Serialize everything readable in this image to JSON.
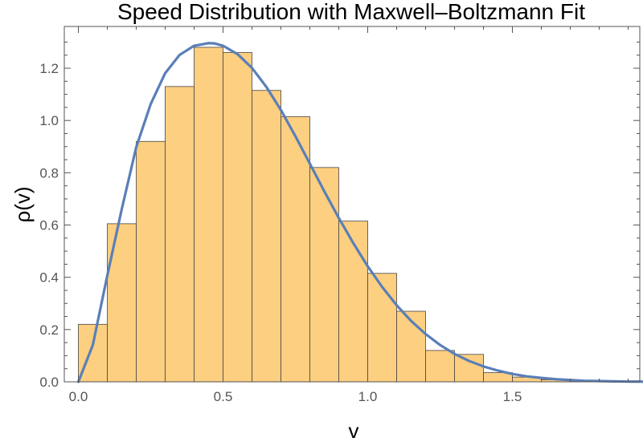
{
  "chart_data": {
    "type": "bar",
    "title": "Speed Distribution with Maxwell–Boltzmann Fit",
    "xlabel": "v",
    "ylabel": "ρ(v)",
    "xlim": [
      0.0,
      1.95
    ],
    "ylim": [
      0.0,
      1.35
    ],
    "xticks": [
      0.0,
      0.5,
      1.0,
      1.5
    ],
    "xtick_labels": [
      "0.0",
      "0.5",
      "1.0",
      "1.5"
    ],
    "yticks": [
      0.0,
      0.2,
      0.4,
      0.6,
      0.8,
      1.0,
      1.2
    ],
    "ytick_labels": [
      "0.0",
      "0.2",
      "0.4",
      "0.6",
      "0.8",
      "1.0",
      "1.2"
    ],
    "histogram": {
      "bin_width": 0.1,
      "bin_starts": [
        0.0,
        0.1,
        0.2,
        0.3,
        0.4,
        0.5,
        0.6,
        0.7,
        0.8,
        0.9,
        1.0,
        1.1,
        1.2,
        1.3,
        1.4,
        1.5,
        1.6,
        1.7,
        1.8,
        1.9
      ],
      "values": [
        0.22,
        0.605,
        0.92,
        1.13,
        1.28,
        1.26,
        1.115,
        1.015,
        0.82,
        0.615,
        0.415,
        0.27,
        0.12,
        0.105,
        0.035,
        0.018,
        0.008,
        0.003,
        0.002,
        0.001
      ]
    },
    "fit_curve": {
      "type": "line",
      "x": [
        0.0,
        0.05,
        0.1,
        0.15,
        0.2,
        0.25,
        0.3,
        0.35,
        0.4,
        0.45,
        0.47,
        0.5,
        0.55,
        0.6,
        0.65,
        0.7,
        0.75,
        0.8,
        0.85,
        0.9,
        0.95,
        1.0,
        1.05,
        1.1,
        1.15,
        1.2,
        1.25,
        1.3,
        1.35,
        1.4,
        1.45,
        1.5,
        1.55,
        1.6,
        1.65,
        1.7,
        1.75,
        1.8,
        1.85,
        1.9,
        1.95
      ],
      "y": [
        0.0,
        0.141,
        0.407,
        0.661,
        0.898,
        1.063,
        1.181,
        1.251,
        1.286,
        1.296,
        1.295,
        1.286,
        1.254,
        1.201,
        1.128,
        1.04,
        0.94,
        0.835,
        0.729,
        0.627,
        0.531,
        0.442,
        0.363,
        0.293,
        0.233,
        0.183,
        0.141,
        0.107,
        0.08,
        0.059,
        0.043,
        0.03,
        0.021,
        0.015,
        0.01,
        0.007,
        0.004,
        0.003,
        0.002,
        0.001,
        0.0007
      ]
    },
    "colors": {
      "bar_fill": "#fdcf80",
      "bar_stroke": "#444444",
      "curve": "#5a7fb8",
      "frame": "#555555"
    },
    "grid": false
  }
}
